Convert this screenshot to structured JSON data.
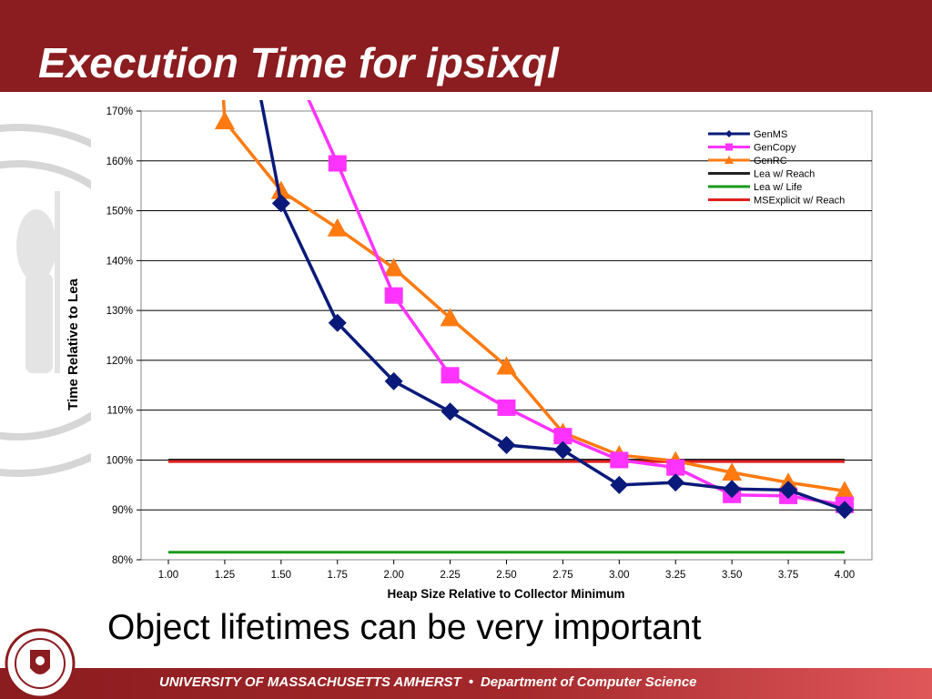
{
  "slide": {
    "title": "Execution Time for ipsixql",
    "subtitle": "Object lifetimes can be very important",
    "footer_university": "UNIVERSITY OF MASSACHUSETTS AMHERST",
    "footer_separator": "•",
    "footer_department": "Department of Computer Science"
  },
  "colors": {
    "header": "#8b1c1f",
    "GenMS": "#0a1a7a",
    "GenCopy": "#ff33ff",
    "GenRC": "#ff7a10",
    "LeaReach": "#222222",
    "LeaLife": "#1a9a1a",
    "MSExplicit": "#e02020"
  },
  "chart_data": {
    "type": "line",
    "xlabel": "Heap Size Relative to Collector Minimum",
    "ylabel": "Time Relative to Lea",
    "x": [
      1.0,
      1.25,
      1.5,
      1.75,
      2.0,
      2.25,
      2.5,
      2.75,
      3.0,
      3.25,
      3.5,
      3.75,
      4.0
    ],
    "xtick_labels": [
      "1.00",
      "1.25",
      "1.50",
      "1.75",
      "2.00",
      "2.25",
      "2.50",
      "2.75",
      "3.00",
      "3.25",
      "3.50",
      "3.75",
      "4.00"
    ],
    "xlim": [
      1.0,
      4.0
    ],
    "ylim": [
      80,
      170
    ],
    "ytick_values": [
      80,
      90,
      100,
      110,
      120,
      130,
      140,
      150,
      160,
      170
    ],
    "ytick_labels": [
      "80%",
      "90%",
      "100%",
      "110%",
      "120%",
      "130%",
      "140%",
      "150%",
      "160%",
      "170%"
    ],
    "grid": true,
    "legend_position": "top-right",
    "series": [
      {
        "name": "GenMS",
        "marker": "diamond",
        "values": [
          null,
          null,
          151.5,
          127.5,
          115.8,
          109.7,
          103.0,
          102.0,
          95.0,
          95.5,
          94.2,
          94.0,
          90.0
        ]
      },
      {
        "name": "GenCopy",
        "marker": "square",
        "values": [
          null,
          null,
          null,
          159.5,
          133.0,
          117.0,
          110.5,
          104.8,
          100.0,
          98.5,
          93.0,
          92.8,
          91.0
        ]
      },
      {
        "name": "GenRC",
        "marker": "triangle",
        "values": [
          null,
          168.0,
          154.0,
          146.5,
          138.5,
          128.5,
          118.8,
          105.5,
          101.0,
          99.8,
          97.5,
          95.5,
          93.8
        ]
      },
      {
        "name": "Lea w/ Reach",
        "marker": "none",
        "values": [
          100.0,
          100.0,
          100.0,
          100.0,
          100.0,
          100.0,
          100.0,
          100.0,
          100.0,
          100.0,
          100.0,
          100.0,
          100.0
        ]
      },
      {
        "name": "Lea w/ Life",
        "marker": "none",
        "values": [
          81.5,
          81.5,
          81.5,
          81.5,
          81.5,
          81.5,
          81.5,
          81.5,
          81.5,
          81.5,
          81.5,
          81.5,
          81.5
        ]
      },
      {
        "name": "MSExplicit w/ Reach",
        "marker": "none",
        "values": [
          99.7,
          99.7,
          99.7,
          99.7,
          99.7,
          99.7,
          99.7,
          99.7,
          99.7,
          99.7,
          99.7,
          99.7,
          99.7
        ]
      }
    ]
  }
}
